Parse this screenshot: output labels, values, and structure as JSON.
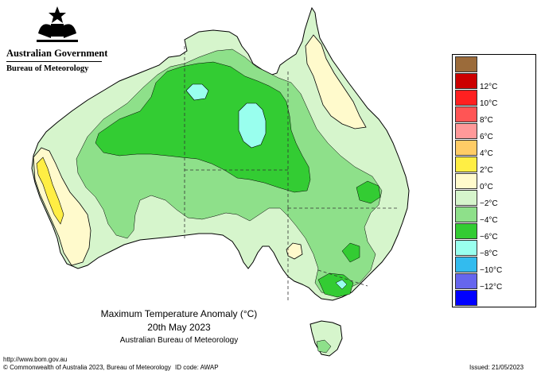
{
  "header": {
    "government": "Australian Government",
    "bureau": "Bureau of Meteorology"
  },
  "map": {
    "title": "Maximum Temperature Anomaly (°C)",
    "date": "20th May 2023",
    "source": "Australian Bureau of Meteorology"
  },
  "legend": [
    {
      "label": "",
      "color": "#9b6b3a"
    },
    {
      "label": "12°C",
      "color": "#cc0000"
    },
    {
      "label": "10°C",
      "color": "#ff2020"
    },
    {
      "label": "8°C",
      "color": "#ff5555"
    },
    {
      "label": "6°C",
      "color": "#ff9999"
    },
    {
      "label": "4°C",
      "color": "#ffcc66"
    },
    {
      "label": "2°C",
      "color": "#ffee44"
    },
    {
      "label": "0°C",
      "color": "#fffacc"
    },
    {
      "label": "−2°C",
      "color": "#d6f5cc"
    },
    {
      "label": "−4°C",
      "color": "#8ee08a"
    },
    {
      "label": "−6°C",
      "color": "#33cc33"
    },
    {
      "label": "−8°C",
      "color": "#99ffee"
    },
    {
      "label": "−10°C",
      "color": "#33bbee"
    },
    {
      "label": "−12°C",
      "color": "#6666ee"
    },
    {
      "label": "",
      "color": "#0000ff"
    }
  ],
  "footer": {
    "url": "http://www.bom.gov.au",
    "copyright": "© Commonwealth of Australia 2023, Bureau of Meteorology",
    "id_code": "ID code: AWAP",
    "issued": "Issued: 21/05/2023"
  },
  "colors": {
    "land_light": "#d6f5cc",
    "land_mid": "#8ee08a",
    "land_dark": "#33cc33",
    "cool": "#99ffee",
    "warm_pale": "#fffacc",
    "warm": "#ffee44"
  }
}
